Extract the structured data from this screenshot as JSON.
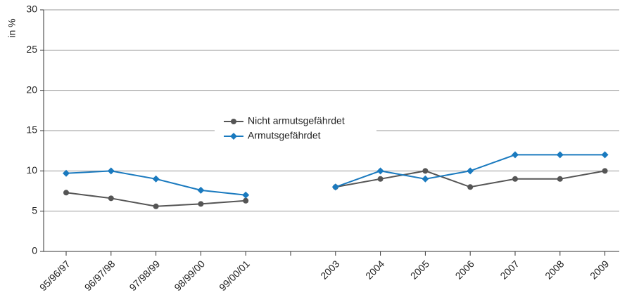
{
  "chart_data": {
    "type": "line",
    "y_label": "in %",
    "categories": [
      "95/96/97",
      "96/97/98",
      "97/98/99",
      "98/99/00",
      "99/00/01",
      null,
      "2003",
      "2004",
      "2005",
      "2006",
      "2007",
      "2008",
      "2009"
    ],
    "series": [
      {
        "name": "Nicht armutsgefährdet",
        "color": "#555555",
        "marker": "circle",
        "values": [
          7.3,
          6.6,
          5.6,
          5.9,
          6.3,
          null,
          8,
          9,
          10,
          8,
          9,
          9,
          10
        ]
      },
      {
        "name": "Armutsgefährdet",
        "color": "#1a7abf",
        "marker": "diamond",
        "values": [
          9.7,
          10,
          9,
          7.6,
          7,
          null,
          8,
          10,
          9,
          10,
          12,
          12,
          12
        ]
      }
    ],
    "ylim": [
      0,
      30
    ],
    "yticks": [
      0,
      5,
      10,
      15,
      20,
      25,
      30
    ],
    "grid": true
  }
}
